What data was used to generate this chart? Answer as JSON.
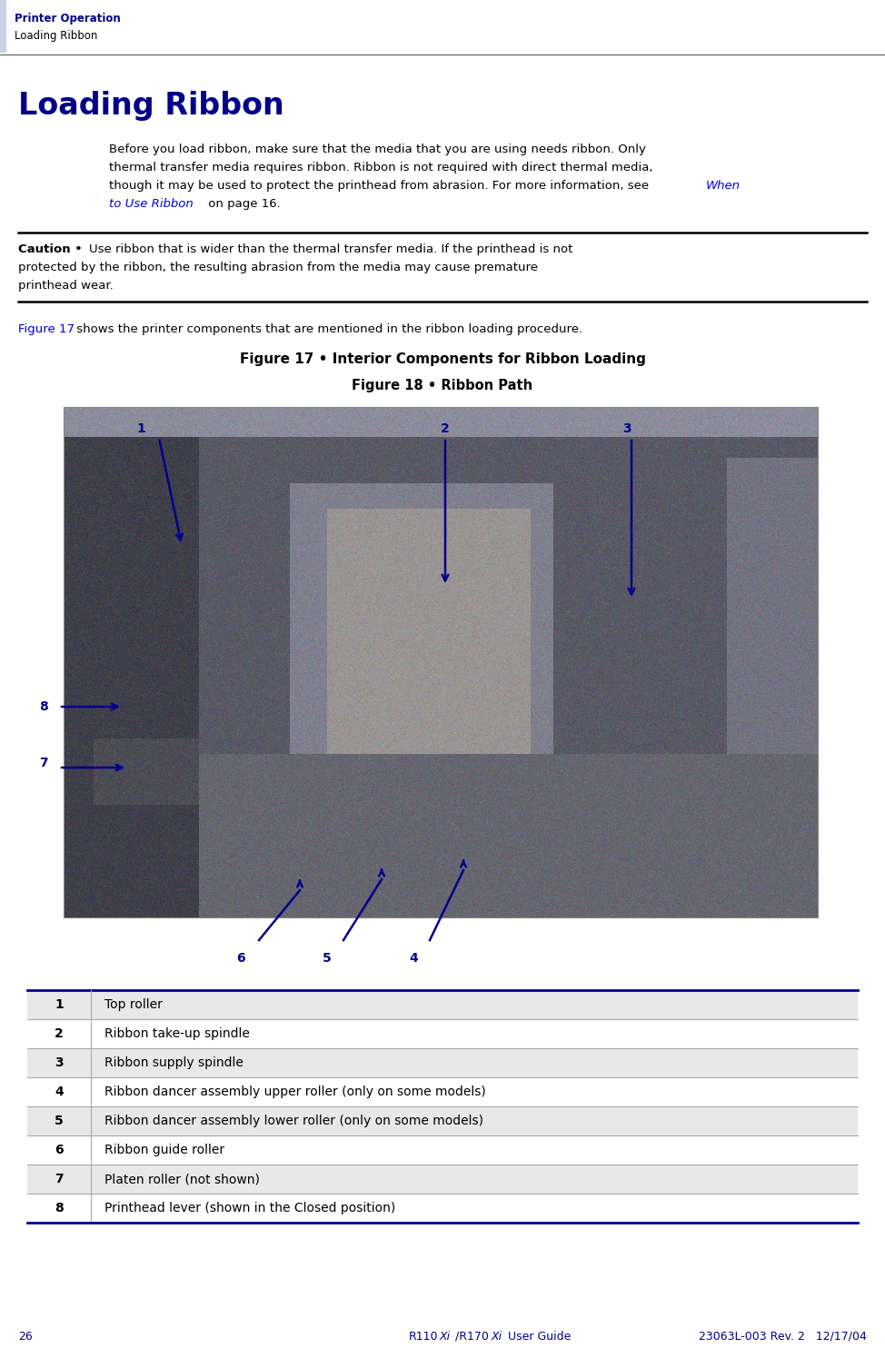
{
  "page_width": 9.74,
  "page_height": 15.06,
  "dpi": 100,
  "bg_color": "#ffffff",
  "header_bar_color": "#c8d0e8",
  "header_text_color": "#00008B",
  "header_line1": "Printer Operation",
  "header_line2": "Loading Ribbon",
  "title": "Loading Ribbon",
  "title_color": "#00008B",
  "title_fontsize": 22,
  "body_text_line1": "Before you load ribbon, make sure that the media that you are using needs ribbon. Only",
  "body_text_line2": "thermal transfer media requires ribbon. Ribbon is not required with direct thermal media,",
  "body_text_line3": "though it may be used to protect the printhead from abrasion. For more information, see ",
  "body_link": "When",
  "body_link2": "to Use Ribbon",
  "body_suffix": " on page 16.",
  "caution_bold": "Caution •  ",
  "caution_text_line1": "Use ribbon that is wider than the thermal transfer media. If the printhead is not",
  "caution_text_line2": "protected by the ribbon, the resulting abrasion from the media may cause premature",
  "caution_text_line3": "printhead wear.",
  "fig17_caption": "Figure 17 • Interior Components for Ribbon Loading",
  "fig18_caption": "Figure 18 • Ribbon Path",
  "intro_ref": "Figure 17",
  "intro_text": " shows the printer components that are mentioned in the ribbon loading procedure.",
  "table_rows": [
    [
      "1",
      "Top roller"
    ],
    [
      "2",
      "Ribbon take-up spindle"
    ],
    [
      "3",
      "Ribbon supply spindle"
    ],
    [
      "4",
      "Ribbon dancer assembly upper roller (only on some models)"
    ],
    [
      "5",
      "Ribbon dancer assembly lower roller (only on some models)"
    ],
    [
      "6",
      "Ribbon guide roller"
    ],
    [
      "7",
      "Platen roller (not shown)"
    ],
    [
      "8",
      "Printhead lever (shown in the Closed position)"
    ]
  ],
  "footer_page": "26",
  "footer_center": "R110Xi/R170",
  "footer_center_italic": "Xi",
  "footer_center2": " User Guide",
  "footer_right": "23063L-003 Rev. 2   12/17/04",
  "footer_color": "#00008B",
  "label_color": "#00008B",
  "arrow_color": "#00008B",
  "link_color": "#0000EE",
  "table_rule_color": "#00008B",
  "table_divider_color": "#aaaaaa"
}
